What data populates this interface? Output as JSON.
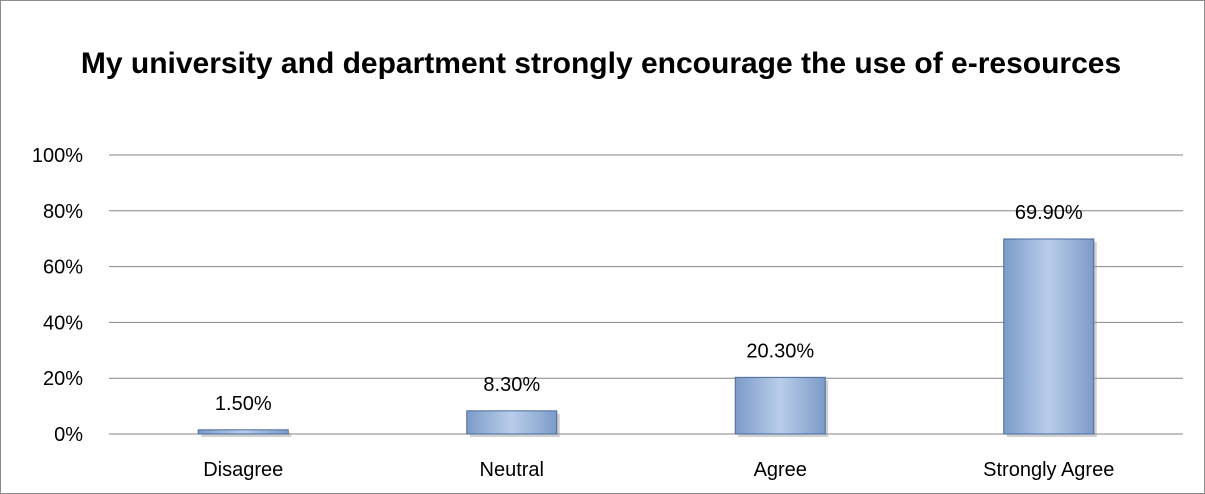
{
  "chart_data": {
    "type": "bar",
    "title": "My university and department strongly encourage the use of e-resources",
    "categories": [
      "Disagree",
      "Neutral",
      "Agree",
      "Strongly Agree"
    ],
    "values": [
      1.5,
      8.3,
      20.3,
      69.9
    ],
    "data_labels": [
      "1.50%",
      "8.30%",
      "20.30%",
      "69.90%"
    ],
    "ylim": [
      0,
      100
    ],
    "yticks": [
      0,
      20,
      40,
      60,
      80,
      100
    ],
    "ytick_labels": [
      "0%",
      "20%",
      "40%",
      "60%",
      "80%",
      "100%"
    ],
    "grid": true,
    "legend": "none",
    "colors": {
      "bar_fill_light": "#b9cdea",
      "bar_fill_dark": "#7c9bc8",
      "bar_edge": "#4a6a9a",
      "gridline": "#868686"
    }
  }
}
